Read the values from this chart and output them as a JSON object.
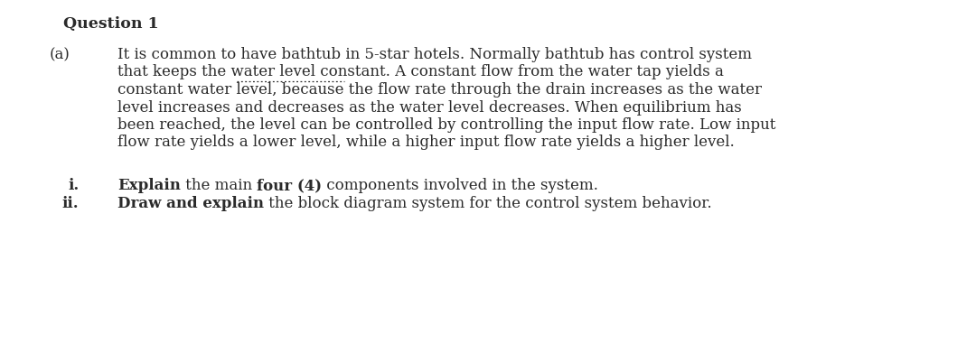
{
  "bg_color": "#ffffff",
  "text_color": "#2a2a2a",
  "figsize": [
    10.8,
    3.91
  ],
  "dpi": 100,
  "font_family": "DejaVu Serif",
  "title_fontsize": 12.5,
  "body_fontsize": 12.0,
  "title": "Question 1",
  "part_a_label": "(a)",
  "para_lines": [
    "It is common to have bathtub in 5-star hotels. Normally bathtub has control system",
    "that keeps the water level constant. A constant flow from the water tap yields a",
    "constant water level, because the flow rate through the drain increases as the water",
    "level increases and decreases as the water level decreases. When equilibrium has",
    "been reached, the level can be controlled by controlling the input flow rate. Low input",
    "flow rate yields a lower level, while a higher input flow rate yields a higher level."
  ],
  "underline_line_idx": 2,
  "underline_prefix": "constant water ",
  "underline_text": "level, because",
  "item_i_label": "i.",
  "item_ii_label": "ii.",
  "item_i_parts": [
    {
      "text": "Explain",
      "bold": true
    },
    {
      "text": " the main ",
      "bold": false
    },
    {
      "text": "four (4)",
      "bold": true
    },
    {
      "text": " components involved in the system.",
      "bold": false
    }
  ],
  "item_ii_parts": [
    {
      "text": "Draw and explain",
      "bold": true
    },
    {
      "text": " the block diagram system for the control system behavior.",
      "bold": false
    }
  ]
}
